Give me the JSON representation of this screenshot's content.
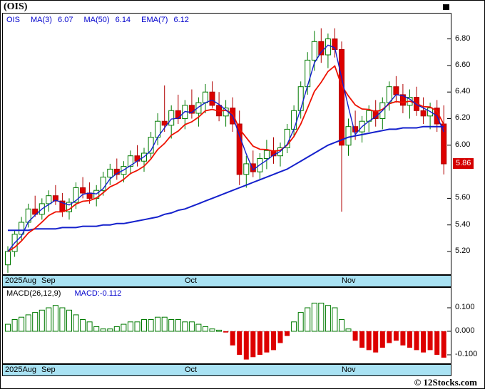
{
  "title": "(OIS)",
  "watermark": "© 12Stocks.com",
  "colors": {
    "up": "#007a00",
    "down": "#dd0000",
    "ma_blue": "#1420cc",
    "ema_red": "#ee1100",
    "band": "#a9e2f3",
    "badge_bg": "#d40000",
    "legend_blue": "#0000cc"
  },
  "price_panel": {
    "legend": {
      "symbol": "OIS",
      "ma3_label": "MA(3)",
      "ma3_value": "6.07",
      "ma50_label": "MA(50)",
      "ma50_value": "6.14",
      "ema7_label": "EMA(7)",
      "ema7_value": "6.12"
    },
    "last_price_badge": "5.86",
    "y_ticks": [
      "6.80",
      "6.60",
      "6.40",
      "6.20",
      "6.00",
      "5.60",
      "5.40",
      "5.20"
    ]
  },
  "macd_panel": {
    "legend_left": "MACD(26,12,9)",
    "legend_right": "MACD:-0.112",
    "y_ticks": [
      "0.100",
      "0.000",
      "-0.100"
    ]
  },
  "x_axis": {
    "labels": [
      {
        "text": "2025Aug",
        "index": 0
      },
      {
        "text": "Sep",
        "index": 6
      },
      {
        "text": "Oct",
        "index": 27
      },
      {
        "text": "Nov",
        "index": 50
      }
    ]
  },
  "chart_data": [
    {
      "type": "candlestick",
      "name": "OIS daily price, Aug-Nov 2025",
      "ylim": [
        5.05,
        6.98
      ],
      "last_price": 5.86,
      "ohlc": [
        [
          5.1,
          5.24,
          5.04,
          5.2
        ],
        [
          5.2,
          5.36,
          5.16,
          5.33
        ],
        [
          5.33,
          5.46,
          5.28,
          5.42
        ],
        [
          5.42,
          5.56,
          5.38,
          5.52
        ],
        [
          5.52,
          5.62,
          5.46,
          5.48
        ],
        [
          5.48,
          5.6,
          5.44,
          5.56
        ],
        [
          5.56,
          5.66,
          5.5,
          5.62
        ],
        [
          5.62,
          5.7,
          5.55,
          5.58
        ],
        [
          5.58,
          5.64,
          5.46,
          5.5
        ],
        [
          5.5,
          5.6,
          5.44,
          5.57
        ],
        [
          5.57,
          5.72,
          5.52,
          5.68
        ],
        [
          5.68,
          5.76,
          5.6,
          5.64
        ],
        [
          5.64,
          5.72,
          5.56,
          5.6
        ],
        [
          5.6,
          5.7,
          5.54,
          5.66
        ],
        [
          5.66,
          5.8,
          5.62,
          5.76
        ],
        [
          5.76,
          5.86,
          5.7,
          5.82
        ],
        [
          5.82,
          5.9,
          5.74,
          5.78
        ],
        [
          5.78,
          5.88,
          5.72,
          5.84
        ],
        [
          5.84,
          5.96,
          5.78,
          5.92
        ],
        [
          5.92,
          6.0,
          5.84,
          5.88
        ],
        [
          5.88,
          5.98,
          5.8,
          5.94
        ],
        [
          5.94,
          6.1,
          5.9,
          6.06
        ],
        [
          6.06,
          6.24,
          6.0,
          6.18
        ],
        [
          6.18,
          6.45,
          6.1,
          6.15
        ],
        [
          6.15,
          6.3,
          6.05,
          6.26
        ],
        [
          6.26,
          6.38,
          6.16,
          6.2
        ],
        [
          6.2,
          6.34,
          6.12,
          6.3
        ],
        [
          6.3,
          6.42,
          6.2,
          6.24
        ],
        [
          6.24,
          6.36,
          6.14,
          6.32
        ],
        [
          6.32,
          6.46,
          6.24,
          6.4
        ],
        [
          6.4,
          6.48,
          6.28,
          6.3
        ],
        [
          6.3,
          6.4,
          6.18,
          6.22
        ],
        [
          6.22,
          6.34,
          6.14,
          6.28
        ],
        [
          6.28,
          6.36,
          6.1,
          6.16
        ],
        [
          6.16,
          6.26,
          5.7,
          5.78
        ],
        [
          5.78,
          5.92,
          5.68,
          5.86
        ],
        [
          5.86,
          5.96,
          5.76,
          5.8
        ],
        [
          5.8,
          5.94,
          5.74,
          5.9
        ],
        [
          5.9,
          6.04,
          5.82,
          5.96
        ],
        [
          5.96,
          6.06,
          5.86,
          5.92
        ],
        [
          5.92,
          6.02,
          5.84,
          5.98
        ],
        [
          5.98,
          6.16,
          5.94,
          6.12
        ],
        [
          6.12,
          6.3,
          6.06,
          6.26
        ],
        [
          6.26,
          6.48,
          6.2,
          6.44
        ],
        [
          6.44,
          6.7,
          6.38,
          6.64
        ],
        [
          6.64,
          6.86,
          6.56,
          6.78
        ],
        [
          6.78,
          6.88,
          6.62,
          6.68
        ],
        [
          6.68,
          6.84,
          6.58,
          6.8
        ],
        [
          6.8,
          6.88,
          6.66,
          6.72
        ],
        [
          6.72,
          6.78,
          5.5,
          6.0
        ],
        [
          6.0,
          6.2,
          5.92,
          6.14
        ],
        [
          6.14,
          6.26,
          6.04,
          6.1
        ],
        [
          6.1,
          6.22,
          6.02,
          6.18
        ],
        [
          6.18,
          6.3,
          6.1,
          6.26
        ],
        [
          6.26,
          6.34,
          6.14,
          6.2
        ],
        [
          6.2,
          6.36,
          6.12,
          6.32
        ],
        [
          6.32,
          6.48,
          6.26,
          6.44
        ],
        [
          6.44,
          6.52,
          6.32,
          6.38
        ],
        [
          6.38,
          6.46,
          6.24,
          6.3
        ],
        [
          6.3,
          6.42,
          6.2,
          6.36
        ],
        [
          6.36,
          6.44,
          6.22,
          6.26
        ],
        [
          6.26,
          6.36,
          6.16,
          6.22
        ],
        [
          6.22,
          6.32,
          6.12,
          6.28
        ],
        [
          6.28,
          6.34,
          6.1,
          6.16
        ],
        [
          6.16,
          6.3,
          5.78,
          5.86
        ]
      ],
      "overlays": [
        {
          "name": "MA(50)",
          "values": [
            5.36,
            5.36,
            5.36,
            5.36,
            5.37,
            5.37,
            5.37,
            5.37,
            5.38,
            5.38,
            5.38,
            5.39,
            5.39,
            5.39,
            5.4,
            5.4,
            5.41,
            5.41,
            5.42,
            5.43,
            5.44,
            5.45,
            5.46,
            5.48,
            5.49,
            5.51,
            5.52,
            5.54,
            5.56,
            5.58,
            5.6,
            5.62,
            5.64,
            5.66,
            5.68,
            5.7,
            5.72,
            5.74,
            5.76,
            5.78,
            5.8,
            5.82,
            5.85,
            5.88,
            5.91,
            5.94,
            5.97,
            6.0,
            6.02,
            6.04,
            6.06,
            6.07,
            6.08,
            6.09,
            6.1,
            6.11,
            6.12,
            6.12,
            6.13,
            6.13,
            6.13,
            6.14,
            6.14,
            6.14,
            6.14
          ]
        }
      ],
      "derived_lines": [
        "MA(3)",
        "EMA(7)"
      ]
    },
    {
      "type": "bar",
      "name": "MACD(26,12,9) histogram",
      "ylim": [
        -0.135,
        0.175
      ],
      "last_value": -0.112,
      "values": [
        0.03,
        0.05,
        0.06,
        0.07,
        0.08,
        0.09,
        0.1,
        0.11,
        0.1,
        0.09,
        0.07,
        0.05,
        0.04,
        0.02,
        0.01,
        0.01,
        0.02,
        0.03,
        0.04,
        0.04,
        0.05,
        0.05,
        0.06,
        0.06,
        0.05,
        0.05,
        0.04,
        0.04,
        0.03,
        0.02,
        0.01,
        0.005,
        -0.005,
        -0.06,
        -0.1,
        -0.12,
        -0.11,
        -0.1,
        -0.09,
        -0.08,
        -0.05,
        -0.02,
        0.04,
        0.08,
        0.1,
        0.12,
        0.12,
        0.11,
        0.1,
        0.05,
        0.01,
        -0.04,
        -0.07,
        -0.08,
        -0.09,
        -0.07,
        -0.05,
        -0.04,
        -0.06,
        -0.07,
        -0.08,
        -0.09,
        -0.08,
        -0.1,
        -0.112
      ]
    }
  ]
}
